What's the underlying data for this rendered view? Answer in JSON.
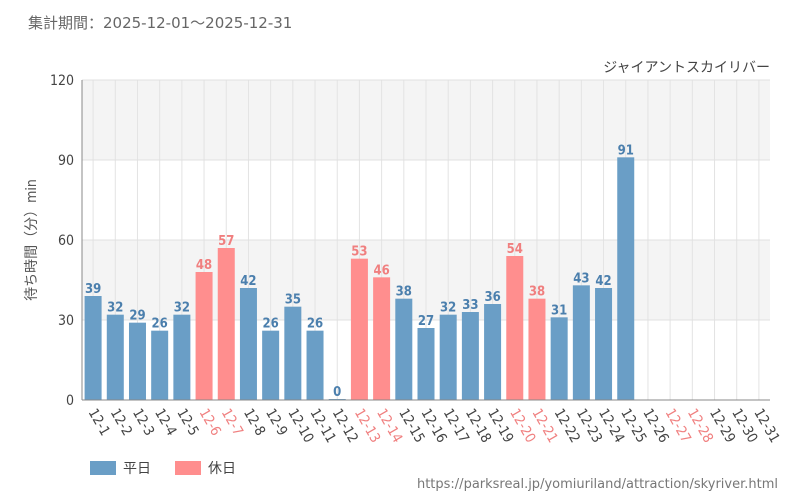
{
  "header": {
    "period": "集計期間：2025-12-01～2025-12-31"
  },
  "footer": {
    "url": "https://parksreal.jp/yomiuriland/attraction/skyriver.html"
  },
  "legend": {
    "weekday": "平日",
    "holiday": "休日"
  },
  "colors": {
    "weekday": "#6a9ec6",
    "holiday": "#ff8e8e",
    "weekday_text": "#4b7fad",
    "holiday_text": "#f07f7f"
  },
  "chart_data": {
    "type": "bar",
    "title": "ジャイアントスカイリバー",
    "xlabel": "",
    "ylabel": "待ち時間（分）min",
    "ylim": [
      0,
      120
    ],
    "yticks": [
      0,
      30,
      60,
      90,
      120
    ],
    "categories": [
      "12-1",
      "12-2",
      "12-3",
      "12-4",
      "12-5",
      "12-6",
      "12-7",
      "12-8",
      "12-9",
      "12-10",
      "12-11",
      "12-12",
      "12-13",
      "12-14",
      "12-15",
      "12-16",
      "12-17",
      "12-18",
      "12-19",
      "12-20",
      "12-21",
      "12-22",
      "12-23",
      "12-24",
      "12-25",
      "12-26",
      "12-27",
      "12-28",
      "12-29",
      "12-30",
      "12-31"
    ],
    "values": [
      39,
      32,
      29,
      26,
      32,
      48,
      57,
      42,
      26,
      35,
      26,
      0,
      53,
      46,
      38,
      27,
      32,
      33,
      36,
      54,
      38,
      31,
      43,
      42,
      91,
      null,
      null,
      null,
      null,
      null,
      null
    ],
    "day_type": [
      "weekday",
      "weekday",
      "weekday",
      "weekday",
      "weekday",
      "holiday",
      "holiday",
      "weekday",
      "weekday",
      "weekday",
      "weekday",
      "weekday",
      "holiday",
      "holiday",
      "weekday",
      "weekday",
      "weekday",
      "weekday",
      "weekday",
      "holiday",
      "holiday",
      "weekday",
      "weekday",
      "weekday",
      "weekday",
      "weekday",
      "holiday",
      "holiday",
      "weekday",
      "weekday",
      "weekday"
    ],
    "grid": true
  }
}
